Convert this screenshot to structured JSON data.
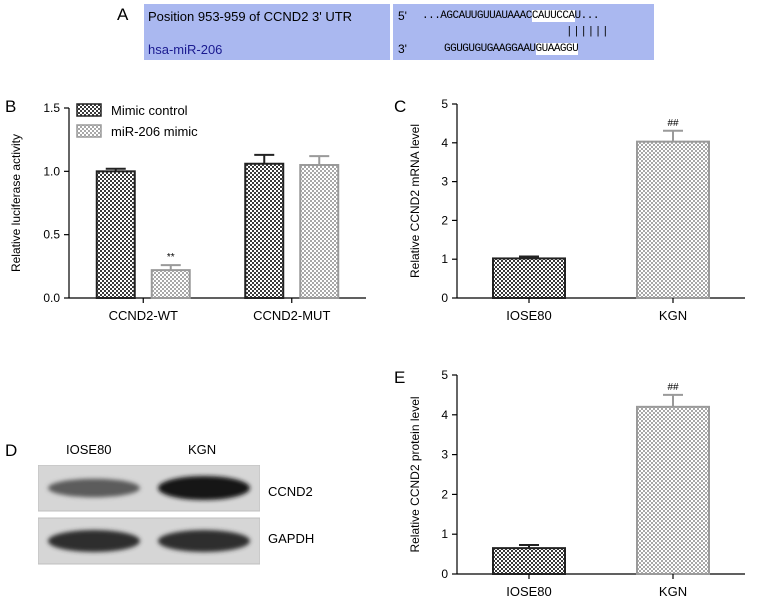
{
  "panels": {
    "a": "A",
    "b": "B",
    "c": "C",
    "d": "D",
    "e": "E"
  },
  "alignment": {
    "utr_label": "Position 953-959 of CCND2 3' UTR",
    "mir_label": "hsa-miR-206",
    "utr_end": "5'",
    "mir_end": "3'",
    "utr_seq_dim": "...AGCAUUGUUAUAAAC",
    "utr_seq_highlight": "CAUUCCA",
    "utr_seq_tail": "U...",
    "pairing": "||||||",
    "mir_seq_dim": "GGUGUGUGAAGGAAU",
    "mir_seq_highlight": "GUAAGGU",
    "colors": {
      "box": "#aab8f0",
      "highlight": "#ffffff",
      "label": "#1a1a90"
    }
  },
  "chart_data": [
    {
      "type": "bar",
      "panel": "B",
      "categories": [
        "CCND2-WT",
        "CCND2-MUT"
      ],
      "series": [
        {
          "name": "Mimic control",
          "values": [
            1.0,
            1.06
          ],
          "errors": [
            0.02,
            0.07
          ]
        },
        {
          "name": "miR-206 mimic",
          "values": [
            0.22,
            1.05
          ],
          "errors": [
            0.04,
            0.07
          ]
        }
      ],
      "annotations": [
        {
          "category": 0,
          "series": 1,
          "text": "**"
        }
      ],
      "ylabel": "Relative luciferase activity",
      "ylim": [
        0,
        1.5
      ],
      "yticks": [
        "0.0",
        "0.5",
        "1.0",
        "1.5"
      ],
      "legend": "top-left"
    },
    {
      "type": "bar",
      "panel": "C",
      "categories": [
        "IOSE80",
        "KGN"
      ],
      "values": [
        1.02,
        4.03
      ],
      "errors": [
        0.05,
        0.28
      ],
      "annotations": [
        {
          "category": 1,
          "text": "##"
        }
      ],
      "ylabel": "Relative CCND2 mRNA level",
      "ylim": [
        0,
        5
      ],
      "yticks": [
        "0",
        "1",
        "2",
        "3",
        "4",
        "5"
      ]
    },
    {
      "type": "bar",
      "panel": "E",
      "categories": [
        "IOSE80",
        "KGN"
      ],
      "values": [
        0.65,
        4.2
      ],
      "errors": [
        0.08,
        0.3
      ],
      "annotations": [
        {
          "category": 1,
          "text": "##"
        }
      ],
      "ylabel": "Relative CCND2 protein level",
      "ylim": [
        0,
        5
      ],
      "yticks": [
        "0",
        "1",
        "2",
        "3",
        "4",
        "5"
      ]
    }
  ],
  "blot": {
    "lanes": [
      "IOSE80",
      "KGN"
    ],
    "rows": [
      {
        "label": "CCND2",
        "intensity": [
          0.45,
          1.0
        ]
      },
      {
        "label": "GAPDH",
        "intensity": [
          0.8,
          0.8
        ]
      }
    ]
  },
  "colors": {
    "dark_bar": "#333333",
    "light_bar": "#a0a0a0",
    "axis": "#000000"
  }
}
